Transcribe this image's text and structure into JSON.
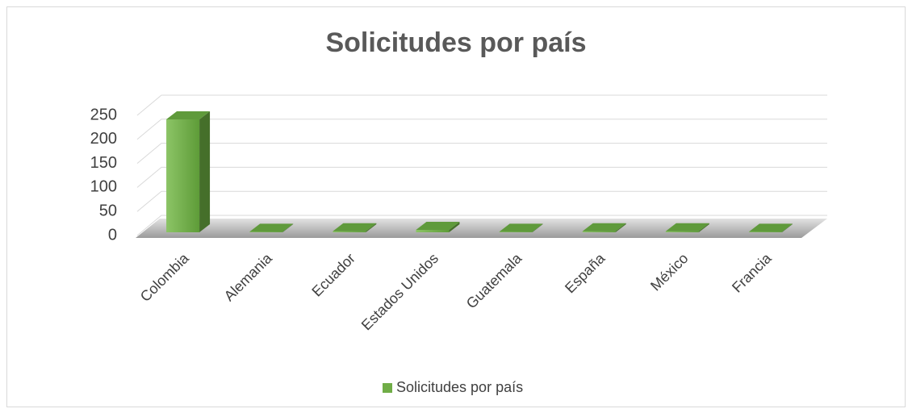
{
  "chart_data": {
    "type": "bar3d",
    "title": "Solicitudes por país",
    "categories": [
      "Colombia",
      "Alemania",
      "Ecuador",
      "Estados Unidos",
      "Guatemala",
      "España",
      "México",
      "Francia"
    ],
    "series": [
      {
        "name": "Solicitudes por país",
        "color": "#70ad47",
        "values": [
          235,
          1,
          2,
          5,
          1,
          2,
          2,
          1
        ]
      }
    ],
    "ylim": [
      0,
      250
    ],
    "yticks": [
      0,
      50,
      100,
      150,
      200,
      250
    ],
    "grid": true,
    "legend": "bottom"
  }
}
